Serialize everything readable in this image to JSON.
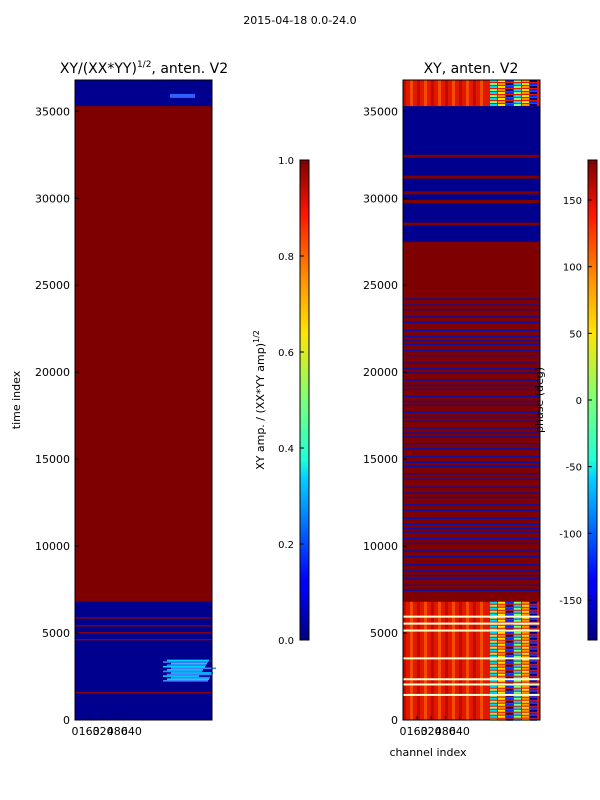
{
  "suptitle": "2015-04-18 0.0-24.0",
  "chart_data": [
    {
      "type": "heatmap",
      "title_main": "XY/(XX*YY)",
      "title_exp": "1/2",
      "title_tail": ", anten. V2",
      "ylabel": "time index",
      "xlabel": "",
      "ylim": [
        0,
        36800
      ],
      "yticks": [
        0,
        5000,
        10000,
        15000,
        20000,
        25000,
        30000,
        35000
      ],
      "xticks": [
        "0",
        "160",
        "320",
        "480",
        "640"
      ],
      "colorbar": {
        "label_main": "XY amp. / (XX*YY amp)",
        "label_exp": "1/2",
        "ticks": [
          "0.0",
          "0.2",
          "0.4",
          "0.6",
          "0.8",
          "1.0"
        ],
        "range": [
          0.0,
          1.0
        ]
      }
    },
    {
      "type": "heatmap",
      "title": "XY, anten. V2",
      "ylabel": "",
      "xlabel": "channel index",
      "ylim": [
        0,
        36800
      ],
      "yticks": [
        0,
        5000,
        10000,
        15000,
        20000,
        25000,
        30000,
        35000
      ],
      "xticks": [
        "0",
        "160",
        "320",
        "480",
        "640"
      ],
      "colorbar": {
        "label": "phase (deg)",
        "ticks": [
          "-150",
          "-100",
          "-50",
          "0",
          "50",
          "100",
          "150"
        ],
        "range": [
          -180,
          180
        ]
      }
    }
  ]
}
